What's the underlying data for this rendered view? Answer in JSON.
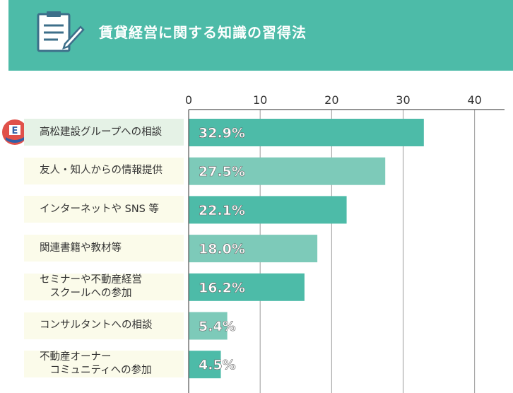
{
  "header": {
    "title": "賃貸経営に関する知識の習得法",
    "icon": "checklist-icon",
    "background_color": "#4dbba8"
  },
  "badge": {
    "icon": "company-logo-icon",
    "text": "E"
  },
  "colors": {
    "bar_dark": "#4dbba8",
    "bar_light": "#7dcab9",
    "label_bg": "#fbfbea",
    "label_bg_highlight": "#e5f2e6",
    "grid": "#9a9a9a"
  },
  "chart_data": {
    "type": "bar",
    "orientation": "horizontal",
    "title": "賃貸経営に関する知識の習得法",
    "xlim": [
      0,
      43
    ],
    "ticks": [
      "0",
      "10",
      "20",
      "30",
      "40"
    ],
    "tick_values": [
      0,
      10,
      20,
      30,
      40
    ],
    "categories": [
      "高松建設グループへの相談",
      "友人・知人からの情報提供",
      "インターネットや SNS 等",
      "関連書籍や教材等",
      "セミナーや不動産経営\n　スクールへの参加",
      "コンサルタントへの相談",
      "不動産オーナー\n　コミュニティへの参加"
    ],
    "values": [
      32.9,
      27.5,
      22.1,
      18.0,
      16.2,
      5.4,
      4.5
    ],
    "value_labels": [
      "32.9%",
      "27.5%",
      "22.1%",
      "18.0%",
      "16.2%",
      "5.4%",
      "4.5%"
    ],
    "grid": true
  }
}
